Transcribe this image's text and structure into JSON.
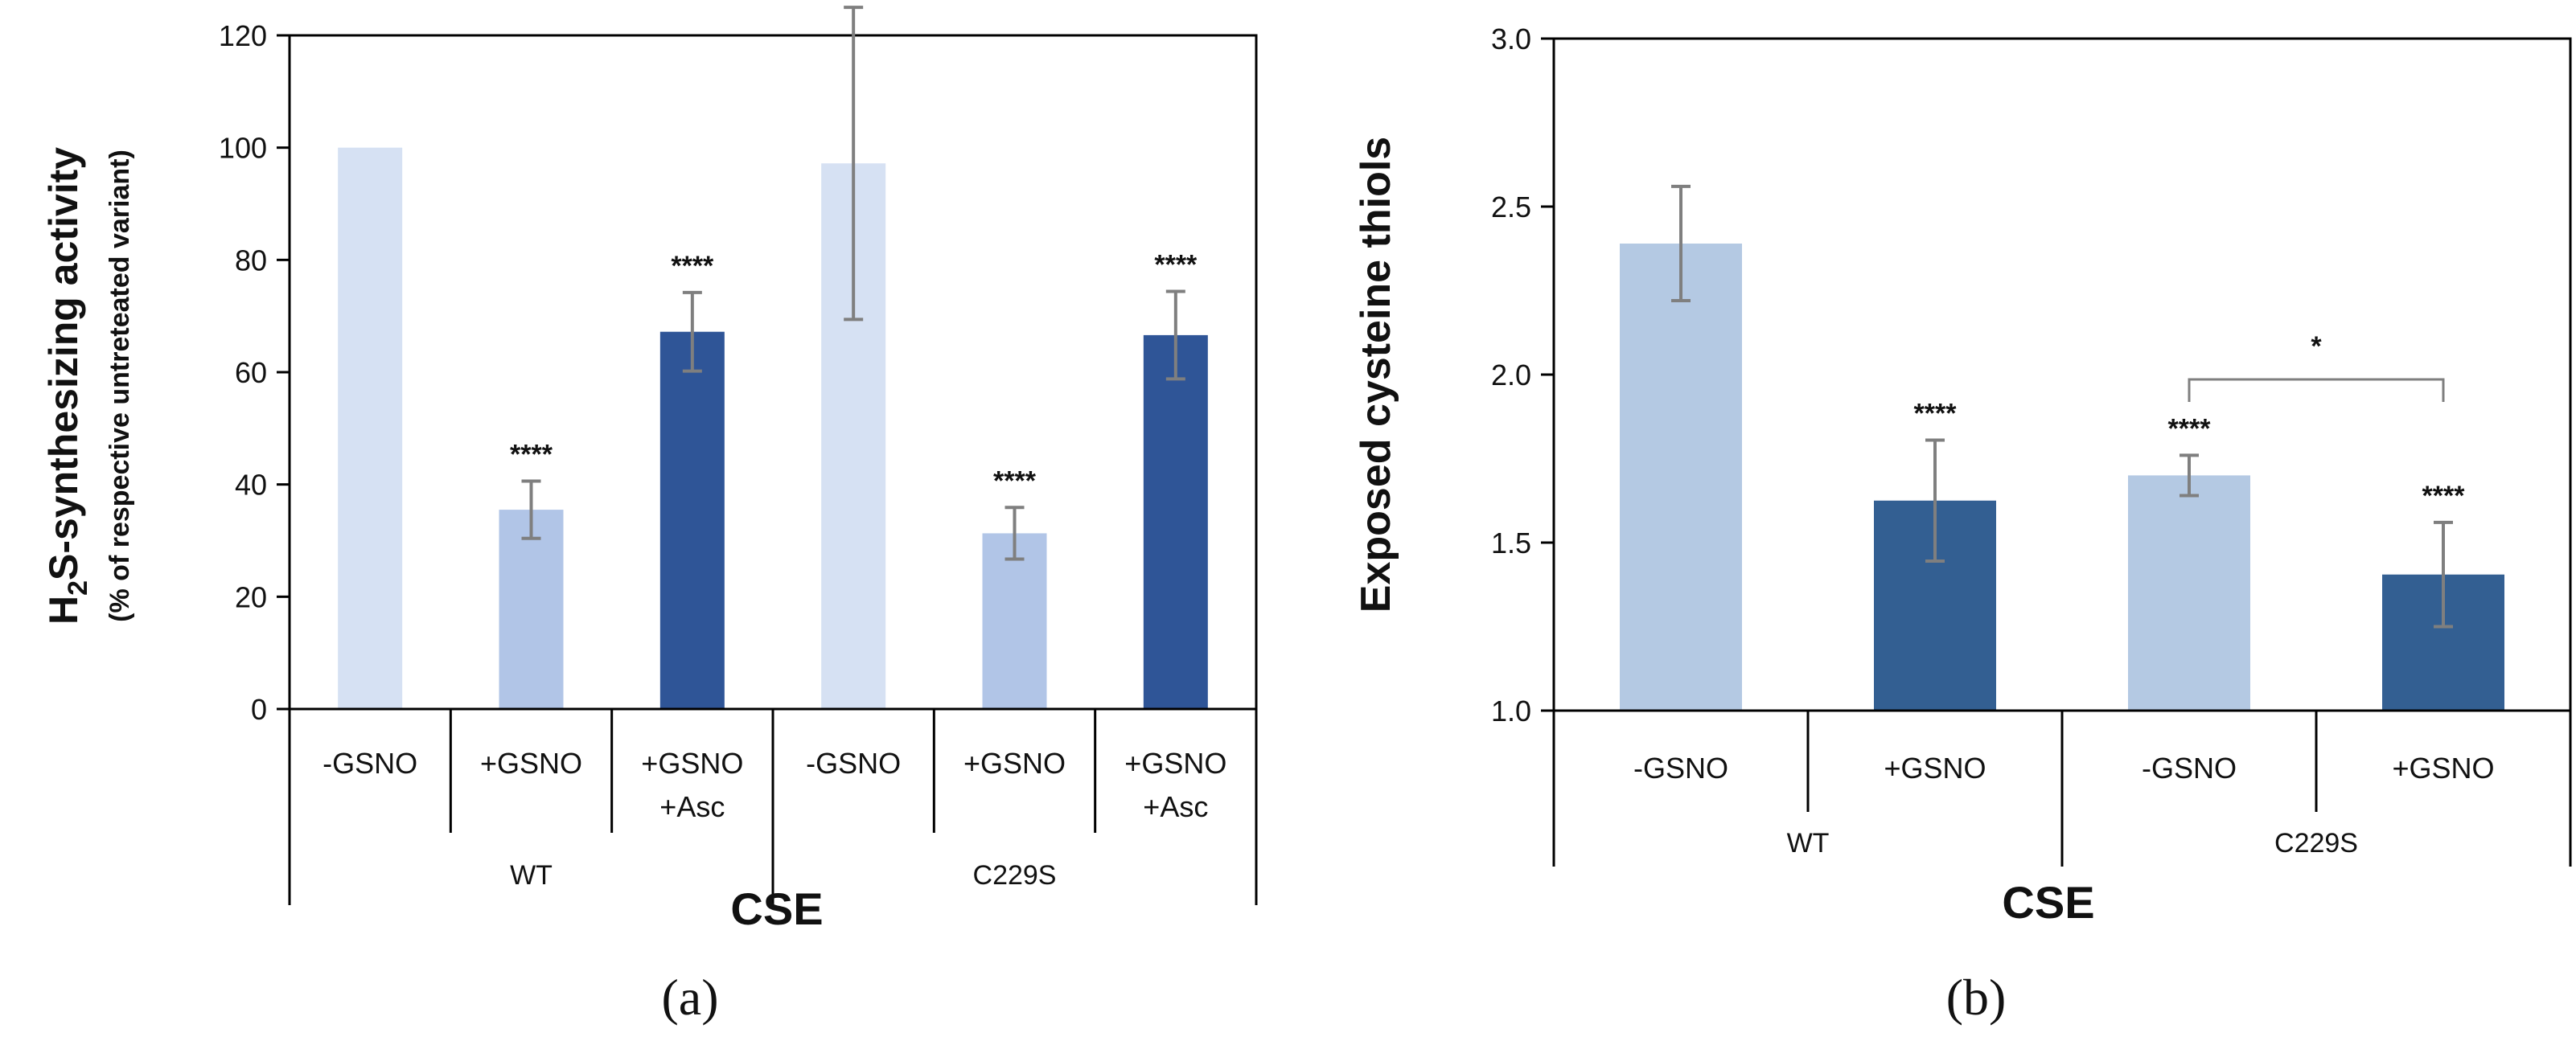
{
  "colors": {
    "very_light": "#d6e1f3",
    "light": "#b1c5e7",
    "dark": "#2f5597",
    "b_light": "#b4c9e3",
    "b_dark": "#335f92",
    "error": "#7f7f7f",
    "axis": "#000000"
  },
  "chart_data": [
    {
      "type": "bar",
      "panel_label": "(a)",
      "title": "",
      "ylabel_main": "H2S-synthesizing activity",
      "ylabel_main_parts": [
        "H",
        "2",
        "S-synthesizing activity"
      ],
      "ylabel_sub": "(% of respective untreteated variant)",
      "ylim": [
        0,
        120
      ],
      "yticks": [
        0,
        20,
        40,
        60,
        80,
        100,
        120
      ],
      "xlabel": "CSE",
      "categories": [
        "-GSNO",
        "+GSNO",
        "+GSNO\n+Asc",
        "-GSNO",
        "+GSNO",
        "+GSNO\n+Asc"
      ],
      "category_lines": [
        [
          "-GSNO"
        ],
        [
          "+GSNO"
        ],
        [
          "+GSNO",
          "+Asc"
        ],
        [
          "-GSNO"
        ],
        [
          "+GSNO"
        ],
        [
          "+GSNO",
          "+Asc"
        ]
      ],
      "groups": [
        {
          "label": "WT",
          "categories": [
            0,
            1,
            2
          ]
        },
        {
          "label": "C229S",
          "categories": [
            3,
            4,
            5
          ]
        }
      ],
      "values": [
        100,
        35.5,
        67.2,
        97.2,
        31.3,
        66.6
      ],
      "errors": [
        0,
        5.1,
        7.0,
        27.8,
        4.6,
        7.8
      ],
      "bar_colors": [
        "very_light",
        "light",
        "dark",
        "very_light",
        "light",
        "dark"
      ],
      "annotations": [
        "",
        "****",
        "****",
        "",
        "****",
        "****"
      ]
    },
    {
      "type": "bar",
      "panel_label": "(b)",
      "title": "",
      "ylabel_main": "Exposed cysteine thiols",
      "ylim": [
        1.0,
        3.0
      ],
      "yticks": [
        "1.0",
        "1.5",
        "2.0",
        "2.5",
        "3.0"
      ],
      "xlabel": "CSE",
      "categories": [
        "-GSNO",
        "+GSNO",
        "-GSNO",
        "+GSNO"
      ],
      "category_lines": [
        [
          "-GSNO"
        ],
        [
          "+GSNO"
        ],
        [
          "-GSNO"
        ],
        [
          "+GSNO"
        ]
      ],
      "groups": [
        {
          "label": "WT",
          "categories": [
            0,
            1
          ]
        },
        {
          "label": "C229S",
          "categories": [
            2,
            3
          ]
        }
      ],
      "values": [
        2.39,
        1.625,
        1.7,
        1.405
      ],
      "errors": [
        0.17,
        0.18,
        0.06,
        0.155
      ],
      "bar_colors": [
        "b_light",
        "b_dark",
        "b_light",
        "b_dark"
      ],
      "annotations": [
        "",
        "****",
        "****",
        "****"
      ],
      "bracket": {
        "from": 2,
        "to": 3,
        "label": "*"
      }
    }
  ]
}
